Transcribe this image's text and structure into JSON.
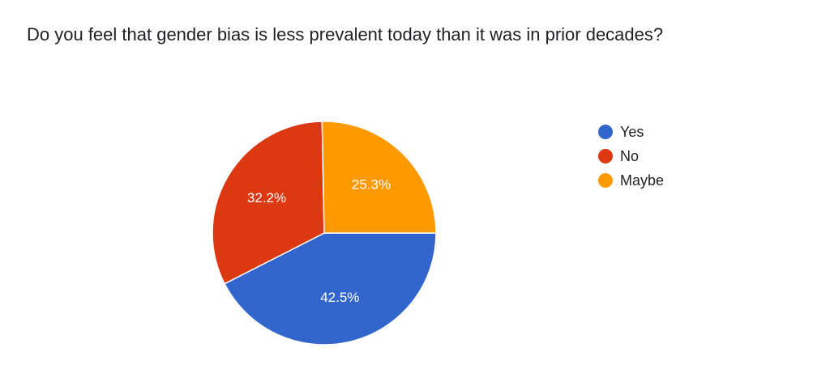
{
  "chart_data": {
    "type": "pie",
    "title": "Do you feel that gender bias is less prevalent today than it was in prior decades?",
    "categories": [
      "Yes",
      "No",
      "Maybe"
    ],
    "values": [
      42.5,
      32.2,
      25.3
    ],
    "labels": [
      "42.5%",
      "32.2%",
      "25.3%"
    ],
    "colors": [
      "#3366cc",
      "#dc3912",
      "#ff9900"
    ],
    "legend_position": "right"
  }
}
